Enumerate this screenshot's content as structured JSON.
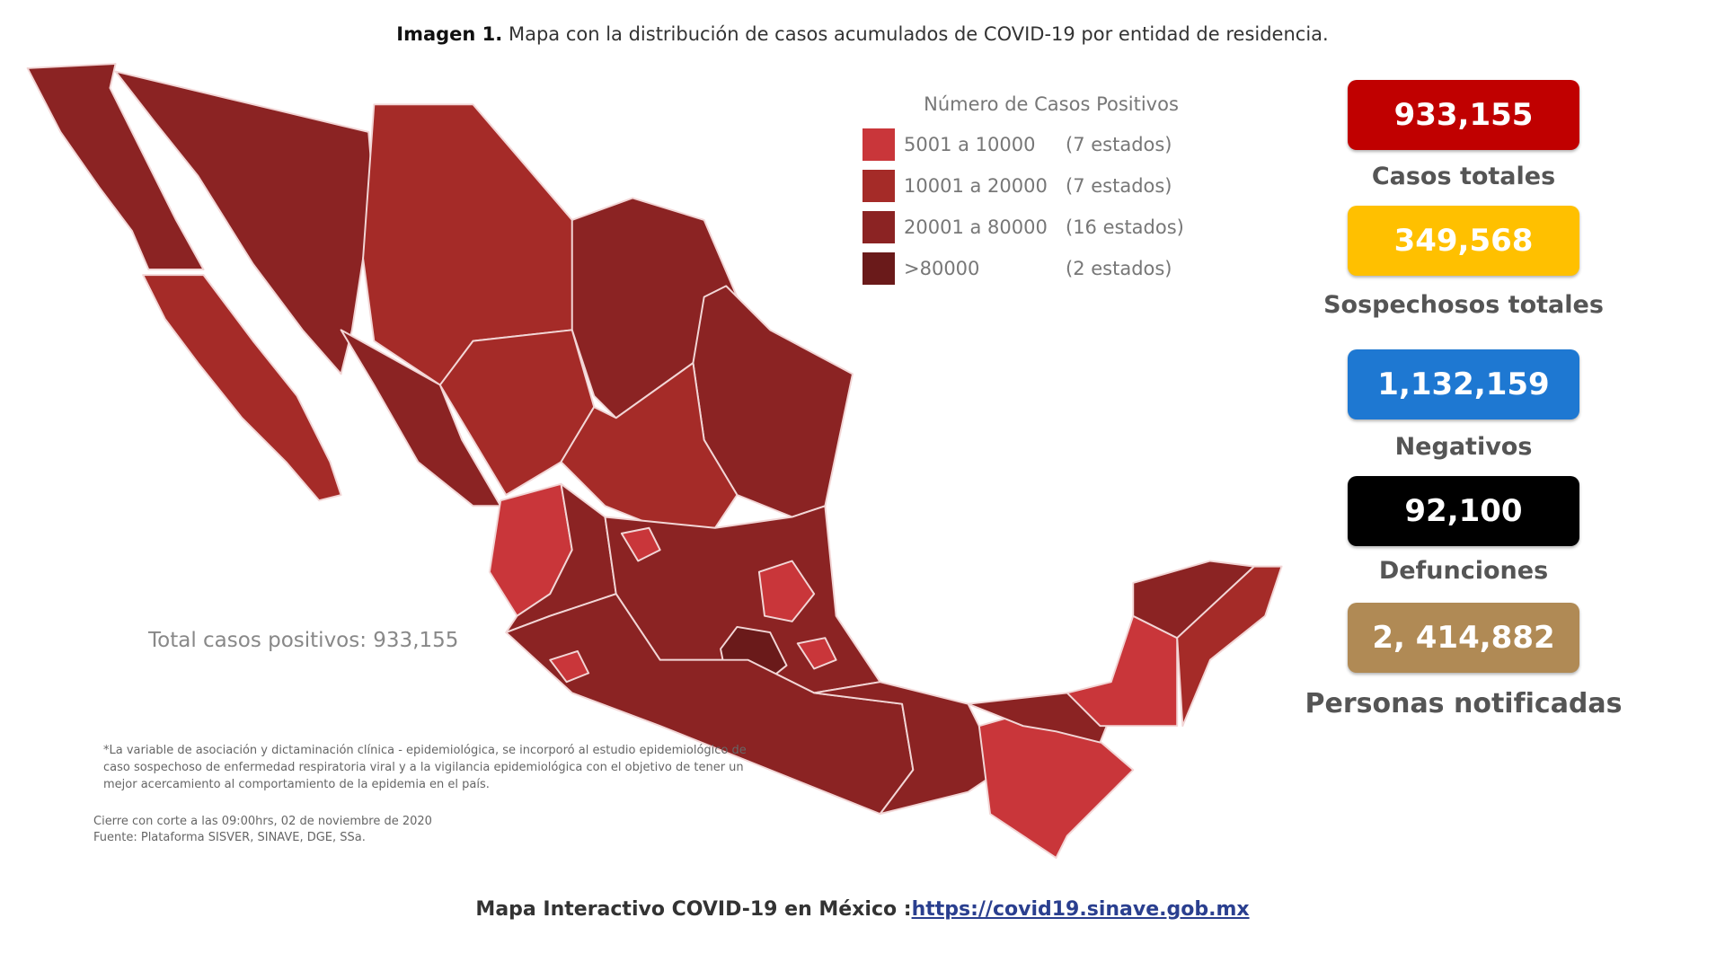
{
  "caption": {
    "label": "Imagen 1.",
    "text": "Mapa con la distribución de casos acumulados de COVID-19 por entidad de residencia."
  },
  "legend": {
    "title": "Número de Casos Positivos",
    "items": [
      {
        "range": "5001 a  10000",
        "count": "(7 estados)",
        "color": "#c9363a"
      },
      {
        "range": "10001 a  20000",
        "count": "(7 estados)",
        "color": "#a52b28"
      },
      {
        "range": "20001 a  80000",
        "count": "(16 estados)",
        "color": "#8b2323"
      },
      {
        "range": ">80000",
        "count": "(2 estados)",
        "color": "#6a1a1a"
      }
    ]
  },
  "total_label": "Total casos positivos: 933,155",
  "stats": [
    {
      "value": "933,155",
      "label": "Casos totales",
      "color": "#c00000"
    },
    {
      "value": "349,568",
      "label": "Sospechosos totales",
      "color": "#ffc000"
    },
    {
      "value": "1,132,159",
      "label": "Negativos",
      "color": "#1e78d2"
    },
    {
      "value": "92,100",
      "label": "Defunciones",
      "color": "#000000"
    },
    {
      "value": "2, 414,882",
      "label": "Personas notificadas",
      "color": "#b08a55"
    }
  ],
  "note": "*La variable de asociación y dictaminación clínica - epidemiológica, se incorporó al estudio epidemiológico de caso sospechoso de enfermedad respiratoria viral y a la vigilancia epidemiológica con el objetivo de tener un mejor acercamiento al comportamiento de la epidemia en el país.",
  "closing": "Cierre con corte a las 09:00hrs, 02 de noviembre de 2020",
  "source": "Fuente: Plataforma SISVER, SINAVE, DGE, SSa.",
  "footer": {
    "text": "Mapa Interactivo COVID-19 en México :",
    "link": "https://covid19.sinave.gob.mx"
  }
}
